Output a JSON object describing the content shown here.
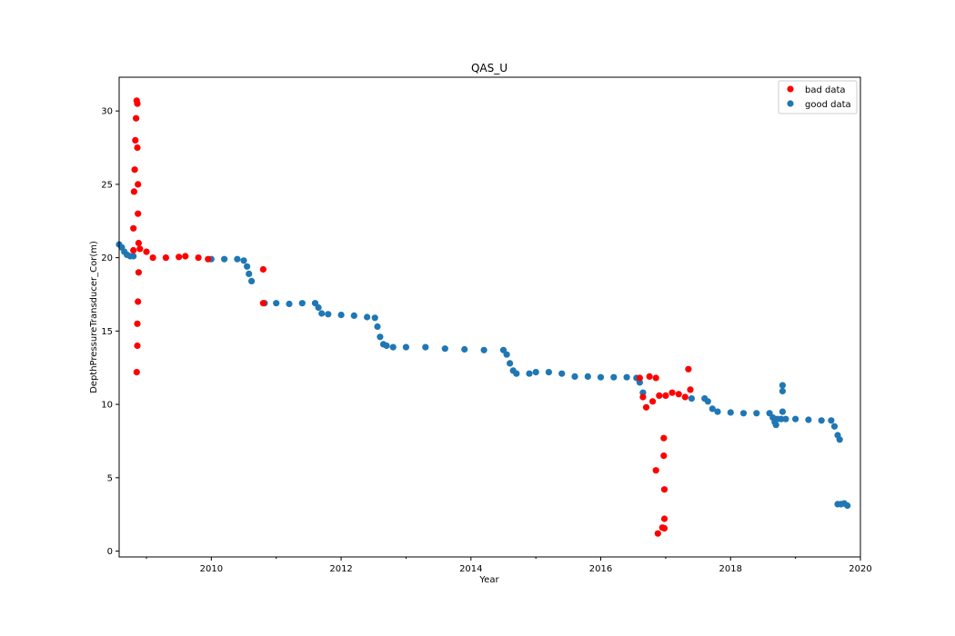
{
  "chart_data": {
    "type": "scatter",
    "title": "QAS_U",
    "xlabel": "Year",
    "ylabel": "DepthPressureTransducer_Cor(m)",
    "xlim": [
      2008.58,
      2020.0
    ],
    "ylim": [
      -0.4,
      32.3
    ],
    "x_ticks": [
      2010,
      2012,
      2014,
      2016,
      2018,
      2020
    ],
    "x_tick_labels": [
      "2010",
      "2012",
      "2014",
      "2016",
      "2018",
      "2020"
    ],
    "y_ticks": [
      0,
      5,
      10,
      15,
      20,
      25,
      30
    ],
    "y_tick_labels": [
      "0",
      "5",
      "10",
      "15",
      "20",
      "25",
      "30"
    ],
    "legend_position": "top-right",
    "grid": false,
    "series": [
      {
        "name": "good data",
        "color": "#1f77b4",
        "points": [
          [
            2008.58,
            20.9
          ],
          [
            2008.62,
            20.7
          ],
          [
            2008.66,
            20.4
          ],
          [
            2008.7,
            20.2
          ],
          [
            2008.75,
            20.1
          ],
          [
            2008.8,
            20.1
          ],
          [
            2010.0,
            19.9
          ],
          [
            2010.2,
            19.9
          ],
          [
            2010.4,
            19.9
          ],
          [
            2010.5,
            19.8
          ],
          [
            2010.55,
            19.4
          ],
          [
            2010.58,
            18.9
          ],
          [
            2010.62,
            18.4
          ],
          [
            2010.82,
            16.9
          ],
          [
            2011.0,
            16.9
          ],
          [
            2011.2,
            16.85
          ],
          [
            2011.4,
            16.9
          ],
          [
            2011.6,
            16.9
          ],
          [
            2011.65,
            16.6
          ],
          [
            2011.7,
            16.2
          ],
          [
            2011.8,
            16.15
          ],
          [
            2012.0,
            16.1
          ],
          [
            2012.2,
            16.05
          ],
          [
            2012.4,
            15.95
          ],
          [
            2012.52,
            15.9
          ],
          [
            2012.56,
            15.3
          ],
          [
            2012.6,
            14.6
          ],
          [
            2012.65,
            14.1
          ],
          [
            2012.7,
            14.0
          ],
          [
            2012.8,
            13.9
          ],
          [
            2013.0,
            13.9
          ],
          [
            2013.3,
            13.9
          ],
          [
            2013.6,
            13.8
          ],
          [
            2013.9,
            13.75
          ],
          [
            2014.2,
            13.7
          ],
          [
            2014.5,
            13.7
          ],
          [
            2014.55,
            13.4
          ],
          [
            2014.6,
            12.8
          ],
          [
            2014.65,
            12.3
          ],
          [
            2014.7,
            12.1
          ],
          [
            2014.9,
            12.1
          ],
          [
            2015.0,
            12.2
          ],
          [
            2015.2,
            12.2
          ],
          [
            2015.4,
            12.1
          ],
          [
            2015.6,
            11.9
          ],
          [
            2015.8,
            11.9
          ],
          [
            2016.0,
            11.85
          ],
          [
            2016.2,
            11.85
          ],
          [
            2016.4,
            11.85
          ],
          [
            2016.55,
            11.8
          ],
          [
            2016.6,
            11.5
          ],
          [
            2016.65,
            10.8
          ],
          [
            2017.4,
            10.4
          ],
          [
            2017.6,
            10.4
          ],
          [
            2017.65,
            10.2
          ],
          [
            2017.72,
            9.7
          ],
          [
            2017.8,
            9.5
          ],
          [
            2018.0,
            9.45
          ],
          [
            2018.2,
            9.4
          ],
          [
            2018.4,
            9.4
          ],
          [
            2018.6,
            9.4
          ],
          [
            2018.65,
            9.1
          ],
          [
            2018.68,
            8.8
          ],
          [
            2018.7,
            8.6
          ],
          [
            2018.72,
            9.0
          ],
          [
            2018.78,
            9.0
          ],
          [
            2018.8,
            9.5
          ],
          [
            2018.8,
            10.9
          ],
          [
            2018.8,
            11.3
          ],
          [
            2018.85,
            9.0
          ],
          [
            2019.0,
            9.0
          ],
          [
            2019.2,
            8.95
          ],
          [
            2019.4,
            8.9
          ],
          [
            2019.55,
            8.9
          ],
          [
            2019.6,
            8.5
          ],
          [
            2019.65,
            7.9
          ],
          [
            2019.68,
            7.6
          ],
          [
            2019.65,
            3.2
          ],
          [
            2019.7,
            3.2
          ],
          [
            2019.75,
            3.25
          ],
          [
            2019.8,
            3.1
          ]
        ]
      },
      {
        "name": "bad data",
        "color": "#ff0000",
        "points": [
          [
            2008.8,
            20.5
          ],
          [
            2008.8,
            22.0
          ],
          [
            2008.81,
            24.5
          ],
          [
            2008.82,
            26.0
          ],
          [
            2008.83,
            28.0
          ],
          [
            2008.84,
            29.5
          ],
          [
            2008.85,
            30.7
          ],
          [
            2008.86,
            30.5
          ],
          [
            2008.86,
            27.5
          ],
          [
            2008.87,
            25.0
          ],
          [
            2008.87,
            23.0
          ],
          [
            2008.88,
            21.0
          ],
          [
            2008.88,
            19.0
          ],
          [
            2008.87,
            17.0
          ],
          [
            2008.86,
            15.5
          ],
          [
            2008.86,
            14.0
          ],
          [
            2008.85,
            12.2
          ],
          [
            2008.9,
            20.6
          ],
          [
            2009.0,
            20.4
          ],
          [
            2009.1,
            20.0
          ],
          [
            2009.3,
            20.0
          ],
          [
            2009.5,
            20.05
          ],
          [
            2009.6,
            20.1
          ],
          [
            2009.8,
            20.0
          ],
          [
            2009.95,
            19.9
          ],
          [
            2010.8,
            19.2
          ],
          [
            2010.8,
            16.9
          ],
          [
            2016.6,
            11.8
          ],
          [
            2016.65,
            10.5
          ],
          [
            2016.7,
            9.8
          ],
          [
            2016.75,
            11.9
          ],
          [
            2016.8,
            10.2
          ],
          [
            2016.85,
            11.8
          ],
          [
            2016.9,
            10.6
          ],
          [
            2016.95,
            1.6
          ],
          [
            2016.85,
            5.5
          ],
          [
            2016.88,
            1.2
          ],
          [
            2016.97,
            7.7
          ],
          [
            2016.97,
            6.5
          ],
          [
            2016.98,
            4.2
          ],
          [
            2016.98,
            2.2
          ],
          [
            2016.98,
            1.55
          ],
          [
            2017.0,
            10.6
          ],
          [
            2017.1,
            10.8
          ],
          [
            2017.2,
            10.7
          ],
          [
            2017.3,
            10.5
          ],
          [
            2017.35,
            12.4
          ],
          [
            2017.38,
            11.0
          ]
        ]
      }
    ]
  }
}
